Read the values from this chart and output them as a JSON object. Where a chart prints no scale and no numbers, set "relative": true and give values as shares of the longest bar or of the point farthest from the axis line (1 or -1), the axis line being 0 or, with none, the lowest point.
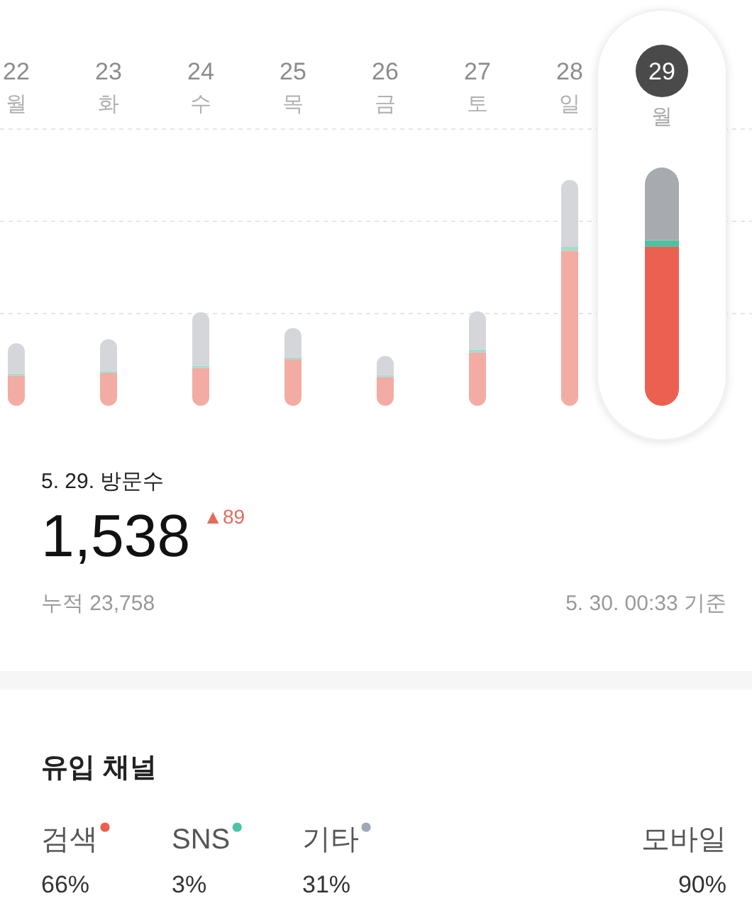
{
  "chart_data": [
    {
      "type": "bar",
      "stacked": true,
      "relative": true,
      "categories": [
        "22\n월",
        "23\n화",
        "24\n수",
        "25\n목",
        "26\n금",
        "27\n토",
        "28\n일",
        "29\n월"
      ],
      "ref_lines": [
        {
          "axis": "y",
          "value": 0.387,
          "color": "#e6e6e6",
          "line_style": "dashed"
        },
        {
          "axis": "y",
          "value": 0.774,
          "color": "#e6e6e6",
          "line_style": "dashed"
        },
        {
          "axis": "y",
          "value": 1.161,
          "color": "#e6e6e6",
          "line_style": "dashed"
        }
      ],
      "series": [
        {
          "colors": [
            "#f3aca4",
            "#f3aca4",
            "#f3aca4",
            "#f3aca4",
            "#f3aca4",
            "#f3aca4",
            "#f3aca4",
            "#eb604f"
          ],
          "values": [
            0.127,
            0.137,
            0.159,
            0.196,
            0.121,
            0.224,
            0.651,
            0.667
          ]
        },
        {
          "colors": [
            "#a3dccd",
            "#a3dccd",
            "#a3dccd",
            "#a3dccd",
            "#a3dccd",
            "#a3dccd",
            "#a3dccd",
            "#52c0a0"
          ],
          "values": [
            0.008,
            0.008,
            0.009,
            0.008,
            0.008,
            0.012,
            0.016,
            0.028
          ]
        },
        {
          "colors": [
            "#d5d6d9",
            "#d5d6d9",
            "#d5d6d9",
            "#d5d6d9",
            "#d5d6d9",
            "#d5d6d9",
            "#d5d6d9",
            "#a7aaae"
          ],
          "values": [
            0.128,
            0.135,
            0.225,
            0.123,
            0.081,
            0.161,
            0.281,
            0.305
          ]
        }
      ]
    },
    {
      "type": "other",
      "title": "5. 29. 방문수",
      "annotations": [
        "1,538",
        "▲89",
        "누적 23,758",
        "5. 30. 00:33 기준"
      ]
    },
    {
      "type": "other",
      "title": "유입 채널",
      "categories": [
        "검색",
        "SNS",
        "기타",
        "모바일"
      ],
      "value_labels": [
        "66%",
        "3%",
        "31%",
        "90%"
      ],
      "colors": [
        "#ec5f4c",
        "#4cc3a6",
        "#a0a8b4",
        null
      ]
    }
  ]
}
